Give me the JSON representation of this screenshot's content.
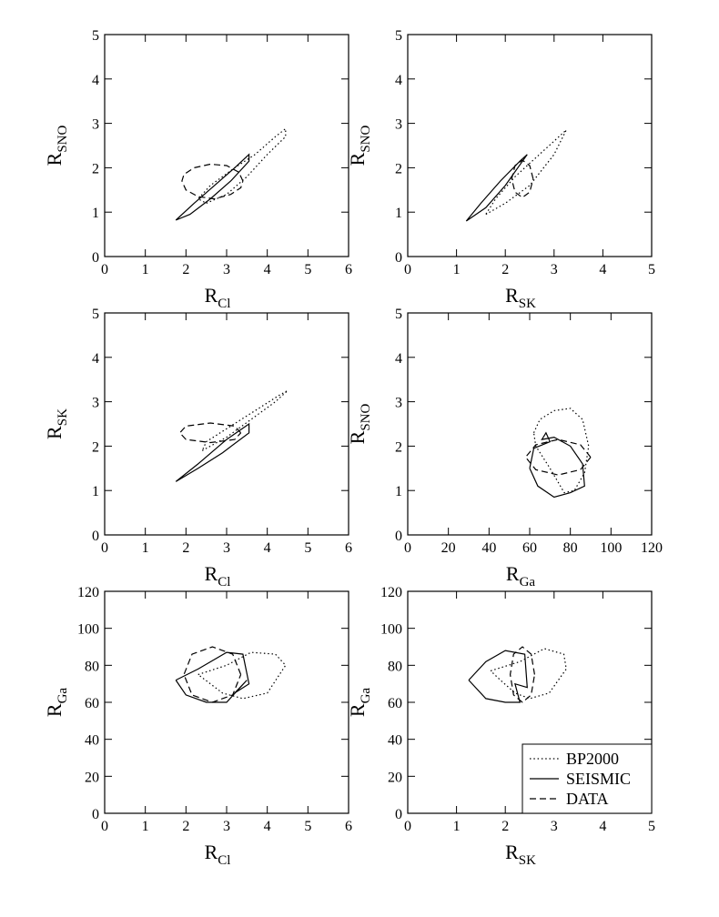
{
  "chart_data": [
    {
      "type": "line",
      "xlabel": {
        "text": "R",
        "subscript": "Cl"
      },
      "ylabel": {
        "text": "R",
        "subscript": "SNO"
      },
      "xlim": [
        0,
        6
      ],
      "xticks": [
        0,
        1,
        2,
        3,
        4,
        5,
        6
      ],
      "ylim": [
        0,
        5
      ],
      "yticks": [
        0,
        1,
        2,
        3,
        4,
        5
      ],
      "series": [
        {
          "linestyle": "dotted",
          "x": [
            2.5,
            3.0,
            3.5,
            4.0,
            4.45,
            4.45,
            4.2,
            3.7,
            3.2,
            2.6,
            2.3,
            2.5
          ],
          "y": [
            1.2,
            1.4,
            1.8,
            2.3,
            2.7,
            2.88,
            2.7,
            2.3,
            2.0,
            1.6,
            1.3,
            1.2
          ]
        },
        {
          "linestyle": "solid",
          "x": [
            1.75,
            2.1,
            2.6,
            3.1,
            3.55,
            3.55,
            3.2,
            2.7,
            2.2,
            1.75
          ],
          "y": [
            0.82,
            0.95,
            1.3,
            1.7,
            2.15,
            2.3,
            2.0,
            1.6,
            1.2,
            0.82
          ]
        },
        {
          "linestyle": "dashed",
          "x": [
            3.4,
            3.3,
            3.0,
            2.6,
            2.2,
            1.95,
            1.9,
            2.0,
            2.3,
            2.7,
            3.1,
            3.35,
            3.4
          ],
          "y": [
            1.7,
            1.9,
            2.05,
            2.08,
            2.0,
            1.85,
            1.7,
            1.5,
            1.35,
            1.3,
            1.4,
            1.55,
            1.7
          ]
        }
      ]
    },
    {
      "type": "line",
      "xlabel": {
        "text": "R",
        "subscript": "SK"
      },
      "ylabel": {
        "text": "R",
        "subscript": "SNO"
      },
      "xlim": [
        0,
        5
      ],
      "xticks": [
        0,
        1,
        2,
        3,
        4,
        5
      ],
      "ylim": [
        0,
        5
      ],
      "yticks": [
        0,
        1,
        2,
        3,
        4,
        5
      ],
      "series": [
        {
          "linestyle": "dotted",
          "x": [
            1.6,
            2.0,
            2.5,
            3.0,
            3.25,
            3.15,
            2.7,
            2.2,
            1.8,
            1.6
          ],
          "y": [
            0.95,
            1.2,
            1.6,
            2.3,
            2.85,
            2.75,
            2.3,
            1.8,
            1.3,
            0.95
          ]
        },
        {
          "linestyle": "solid",
          "x": [
            1.2,
            1.6,
            2.0,
            2.45,
            2.3,
            1.9,
            1.5,
            1.2
          ],
          "y": [
            0.8,
            1.1,
            1.6,
            2.3,
            2.15,
            1.7,
            1.2,
            0.8
          ]
        },
        {
          "linestyle": "dashed",
          "x": [
            2.57,
            2.5,
            2.35,
            2.2,
            2.13,
            2.2,
            2.35,
            2.5,
            2.57
          ],
          "y": [
            1.75,
            2.05,
            2.17,
            2.05,
            1.75,
            1.45,
            1.33,
            1.45,
            1.75
          ]
        }
      ]
    },
    {
      "type": "line",
      "xlabel": {
        "text": "R",
        "subscript": "Cl"
      },
      "ylabel": {
        "text": "R",
        "subscript": "SK"
      },
      "xlim": [
        0,
        6
      ],
      "xticks": [
        0,
        1,
        2,
        3,
        4,
        5,
        6
      ],
      "ylim": [
        0,
        5
      ],
      "yticks": [
        0,
        1,
        2,
        3,
        4,
        5
      ],
      "series": [
        {
          "linestyle": "dotted",
          "x": [
            2.4,
            3.0,
            3.6,
            4.2,
            4.5,
            4.3,
            3.7,
            3.1,
            2.5,
            2.4
          ],
          "y": [
            1.9,
            2.2,
            2.6,
            3.0,
            3.25,
            3.15,
            2.8,
            2.45,
            2.1,
            1.9
          ]
        },
        {
          "linestyle": "solid",
          "x": [
            1.75,
            2.3,
            2.9,
            3.55,
            3.55,
            3.0,
            2.3,
            1.75
          ],
          "y": [
            1.2,
            1.5,
            1.85,
            2.3,
            2.5,
            2.15,
            1.6,
            1.2
          ]
        },
        {
          "linestyle": "dashed",
          "x": [
            3.35,
            3.2,
            2.6,
            2.0,
            1.85,
            2.0,
            2.6,
            3.2,
            3.35
          ],
          "y": [
            2.3,
            2.45,
            2.52,
            2.45,
            2.3,
            2.15,
            2.08,
            2.15,
            2.3
          ]
        }
      ]
    },
    {
      "type": "line",
      "xlabel": {
        "text": "R",
        "subscript": "Ga"
      },
      "ylabel": {
        "text": "R",
        "subscript": "SNO"
      },
      "xlim": [
        0,
        120
      ],
      "xticks": [
        0,
        20,
        40,
        60,
        80,
        100,
        120
      ],
      "ylim": [
        0,
        5
      ],
      "yticks": [
        0,
        1,
        2,
        3,
        4,
        5
      ],
      "series": [
        {
          "linestyle": "dotted",
          "x": [
            62,
            65,
            72,
            80,
            86,
            89,
            87,
            82,
            77,
            70,
            63,
            62
          ],
          "y": [
            2.3,
            2.6,
            2.8,
            2.85,
            2.6,
            2.0,
            1.4,
            1.0,
            0.95,
            1.5,
            2.0,
            2.3
          ]
        },
        {
          "linestyle": "solid",
          "x": [
            60,
            62,
            70,
            68,
            66,
            72,
            80,
            86,
            87,
            80,
            72,
            64,
            60
          ],
          "y": [
            1.5,
            1.95,
            2.1,
            2.3,
            2.15,
            2.2,
            2.0,
            1.6,
            1.1,
            0.95,
            0.85,
            1.1,
            1.5
          ]
        },
        {
          "linestyle": "dashed",
          "x": [
            90,
            85,
            74,
            63,
            58,
            63,
            74,
            85,
            90
          ],
          "y": [
            1.75,
            2.03,
            2.15,
            2.03,
            1.75,
            1.47,
            1.35,
            1.47,
            1.75
          ]
        }
      ]
    },
    {
      "type": "line",
      "xlabel": {
        "text": "R",
        "subscript": "Cl"
      },
      "ylabel": {
        "text": "R",
        "subscript": "Ga"
      },
      "xlim": [
        0,
        6
      ],
      "xticks": [
        0,
        1,
        2,
        3,
        4,
        5,
        6
      ],
      "ylim": [
        0,
        120
      ],
      "yticks": [
        0,
        20,
        40,
        60,
        80,
        100,
        120
      ],
      "series": [
        {
          "linestyle": "dotted",
          "x": [
            2.3,
            3.0,
            3.6,
            4.2,
            4.45,
            4.0,
            3.4,
            2.9,
            2.3
          ],
          "y": [
            75,
            80,
            87,
            86,
            80,
            65,
            62,
            65,
            75
          ]
        },
        {
          "linestyle": "solid",
          "x": [
            1.75,
            2.3,
            3.0,
            3.4,
            3.55,
            3.2,
            3.5,
            3.0,
            2.5,
            2.0,
            1.75
          ],
          "y": [
            72,
            78,
            87,
            86,
            70,
            65,
            72,
            60,
            60,
            64,
            72
          ]
        },
        {
          "linestyle": "dashed",
          "x": [
            3.35,
            3.15,
            2.65,
            2.15,
            1.95,
            2.15,
            2.65,
            3.15,
            3.35
          ],
          "y": [
            75,
            86,
            90,
            86,
            75,
            64,
            60,
            64,
            75
          ]
        }
      ]
    },
    {
      "type": "line",
      "xlabel": {
        "text": "R",
        "subscript": "SK"
      },
      "ylabel": {
        "text": "R",
        "subscript": "Ga"
      },
      "xlim": [
        0,
        5
      ],
      "xticks": [
        0,
        1,
        2,
        3,
        4,
        5
      ],
      "ylim": [
        0,
        120
      ],
      "yticks": [
        0,
        20,
        40,
        60,
        80,
        100,
        120
      ],
      "legend": "lower right",
      "series": [
        {
          "name": "BP2000",
          "linestyle": "dotted",
          "x": [
            1.7,
            2.3,
            2.8,
            3.2,
            3.25,
            2.9,
            2.5,
            2.2,
            1.9,
            1.7
          ],
          "y": [
            77,
            82,
            89,
            86,
            78,
            65,
            62,
            65,
            72,
            77
          ]
        },
        {
          "name": "SEISMIC",
          "linestyle": "solid",
          "x": [
            1.25,
            1.6,
            2.0,
            2.4,
            2.45,
            2.2,
            2.3,
            2.0,
            1.6,
            1.25
          ],
          "y": [
            72,
            82,
            88,
            86,
            68,
            70,
            60,
            60,
            62,
            72
          ]
        },
        {
          "name": "DATA",
          "linestyle": "dashed",
          "x": [
            2.6,
            2.53,
            2.35,
            2.17,
            2.1,
            2.17,
            2.35,
            2.53,
            2.6
          ],
          "y": [
            75,
            86,
            90,
            86,
            75,
            64,
            60,
            64,
            75
          ]
        }
      ]
    }
  ]
}
